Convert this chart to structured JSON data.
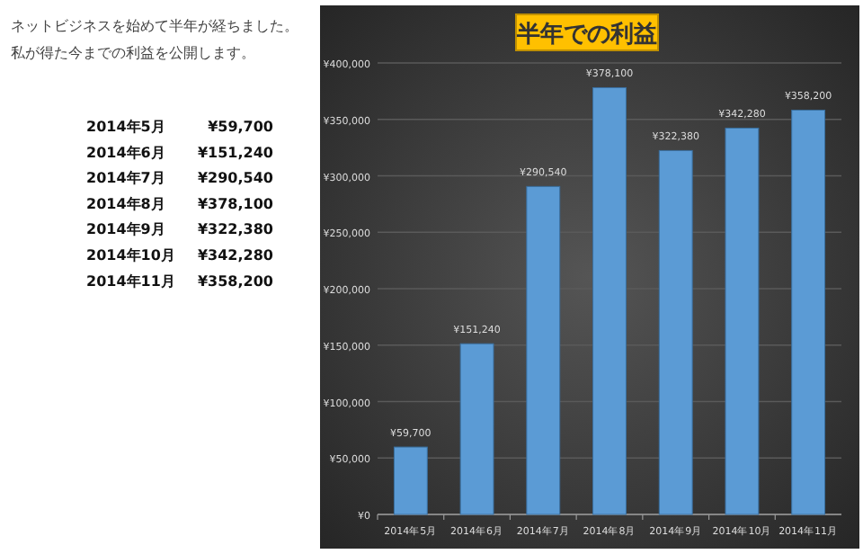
{
  "chart_data": {
    "type": "bar",
    "title": "半年での利益",
    "categories": [
      "2014年5月",
      "2014年6月",
      "2014年7月",
      "2014年8月",
      "2014年9月",
      "2014年10月",
      "2014年11月"
    ],
    "values": [
      59700,
      151240,
      290540,
      378100,
      322380,
      342280,
      358200
    ],
    "value_labels": [
      "¥59,700",
      "¥151,240",
      "¥290,540",
      "¥378,100",
      "¥322,380",
      "¥342,280",
      "¥358,200"
    ],
    "color": "#5b9bd5",
    "ylim": [
      0,
      400000
    ],
    "yticks": [
      {
        "value": 0,
        "label": "¥0"
      },
      {
        "value": 50000,
        "label": "¥50,000"
      },
      {
        "value": 100000,
        "label": "¥100,000"
      },
      {
        "value": 150000,
        "label": "¥150,000"
      },
      {
        "value": 200000,
        "label": "¥200,000"
      },
      {
        "value": 250000,
        "label": "¥250,000"
      },
      {
        "value": 300000,
        "label": "¥300,000"
      },
      {
        "value": 350000,
        "label": "¥350,000"
      },
      {
        "value": 400000,
        "label": "¥400,000"
      }
    ],
    "grid": "y",
    "annotations": [
      "ネットビジネスを始めて半年が経ちました。",
      "私が得た今までの利益を公開します。"
    ]
  }
}
